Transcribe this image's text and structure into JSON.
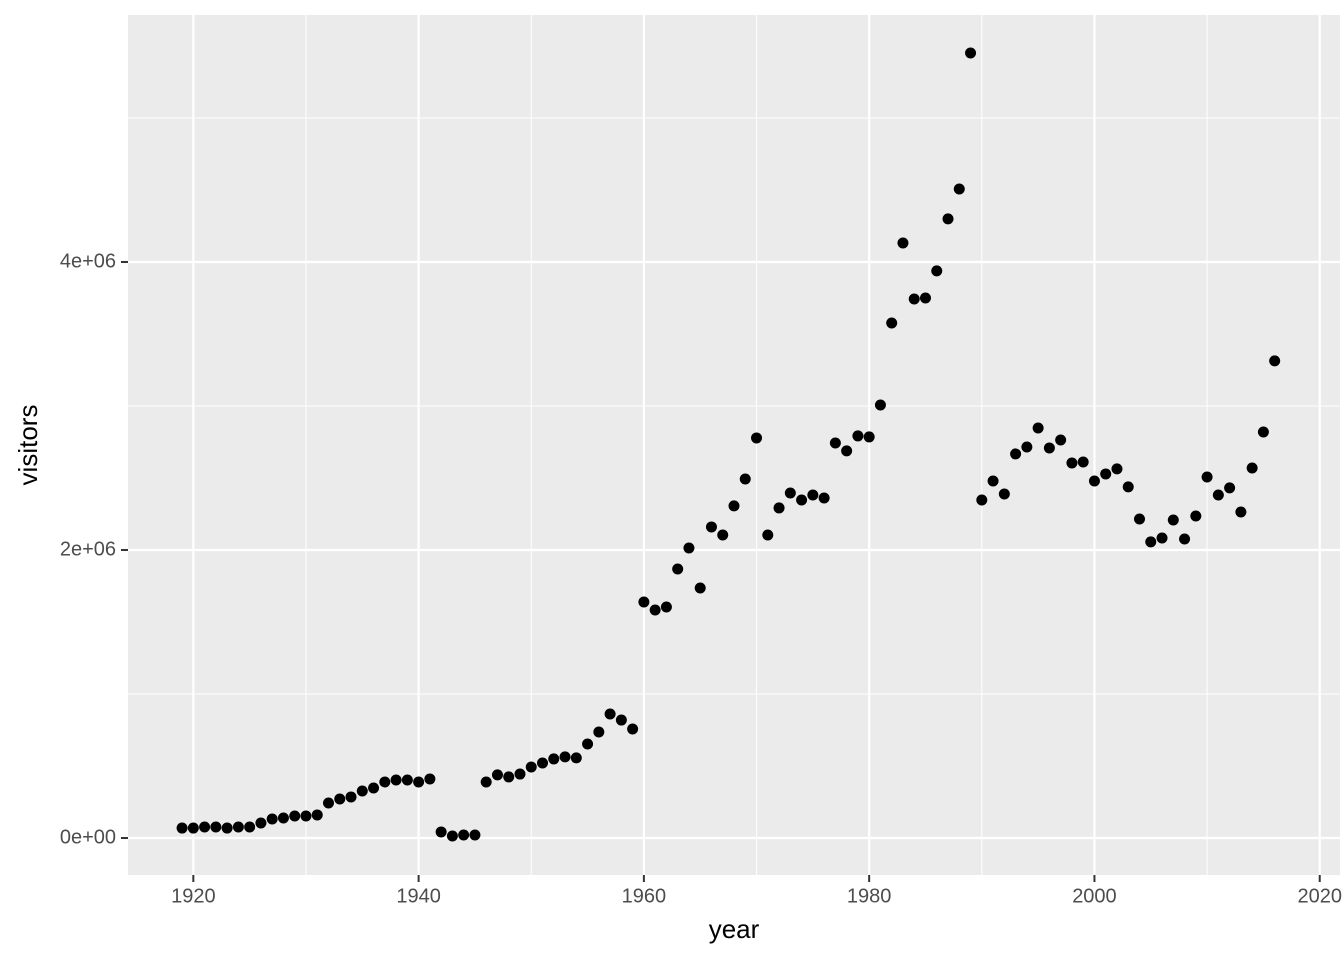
{
  "chart_data": {
    "type": "scatter",
    "x_label": "year",
    "y_label": "visitors",
    "color": "#000000",
    "x": [
      1919,
      1920,
      1921,
      1922,
      1923,
      1924,
      1925,
      1926,
      1927,
      1928,
      1929,
      1930,
      1931,
      1932,
      1933,
      1934,
      1935,
      1936,
      1937,
      1938,
      1939,
      1940,
      1941,
      1942,
      1943,
      1944,
      1945,
      1946,
      1947,
      1948,
      1949,
      1950,
      1951,
      1952,
      1953,
      1954,
      1955,
      1956,
      1957,
      1958,
      1959,
      1960,
      1961,
      1962,
      1963,
      1964,
      1965,
      1966,
      1967,
      1968,
      1969,
      1970,
      1971,
      1972,
      1973,
      1974,
      1975,
      1976,
      1977,
      1978,
      1979,
      1980,
      1981,
      1982,
      1983,
      1984,
      1985,
      1986,
      1987,
      1988,
      1989,
      1990,
      1991,
      1992,
      1993,
      1994,
      1995,
      1996,
      1997,
      1998,
      1999,
      2000,
      2001,
      2002,
      2003,
      2004,
      2005,
      2006,
      2007,
      2008,
      2009,
      2010,
      2011,
      2012,
      2013,
      2014,
      2015,
      2016
    ],
    "values": [
      69000,
      69000,
      76000,
      76000,
      69000,
      76000,
      76000,
      104000,
      132000,
      139000,
      153000,
      153000,
      160000,
      243000,
      271000,
      285000,
      326000,
      347000,
      389000,
      403000,
      403000,
      389000,
      410000,
      42000,
      14000,
      21000,
      21000,
      389000,
      438000,
      424000,
      444000,
      493000,
      521000,
      549000,
      563000,
      556000,
      653000,
      736000,
      861000,
      819000,
      757000,
      1639000,
      1583000,
      1604000,
      1868000,
      2014000,
      1736000,
      2160000,
      2104000,
      2306000,
      2493000,
      2778000,
      2104000,
      2292000,
      2396000,
      2347000,
      2382000,
      2361000,
      2743000,
      2688000,
      2792000,
      2785000,
      3007000,
      3576000,
      4132000,
      3743000,
      3750000,
      3938000,
      4299000,
      4507000,
      5451000,
      2347000,
      2479000,
      2389000,
      2667000,
      2715000,
      2847000,
      2708000,
      2764000,
      2604000,
      2611000,
      2479000,
      2528000,
      2563000,
      2438000,
      2215000,
      2056000,
      2083000,
      2208000,
      2076000,
      2236000,
      2507000,
      2382000,
      2431000,
      2264000,
      2569000,
      2819000,
      3313000
    ],
    "xlim": [
      1914.2,
      2021.8
    ],
    "xticks": [
      1920,
      1940,
      1960,
      1980,
      2000,
      2020
    ],
    "ylim": [
      -257000,
      5715000
    ],
    "yticks": [
      {
        "value": 0,
        "label": "0e+00"
      },
      {
        "value": 2000000,
        "label": "2e+06"
      },
      {
        "value": 4000000,
        "label": "4e+06"
      }
    ],
    "grid": true
  }
}
